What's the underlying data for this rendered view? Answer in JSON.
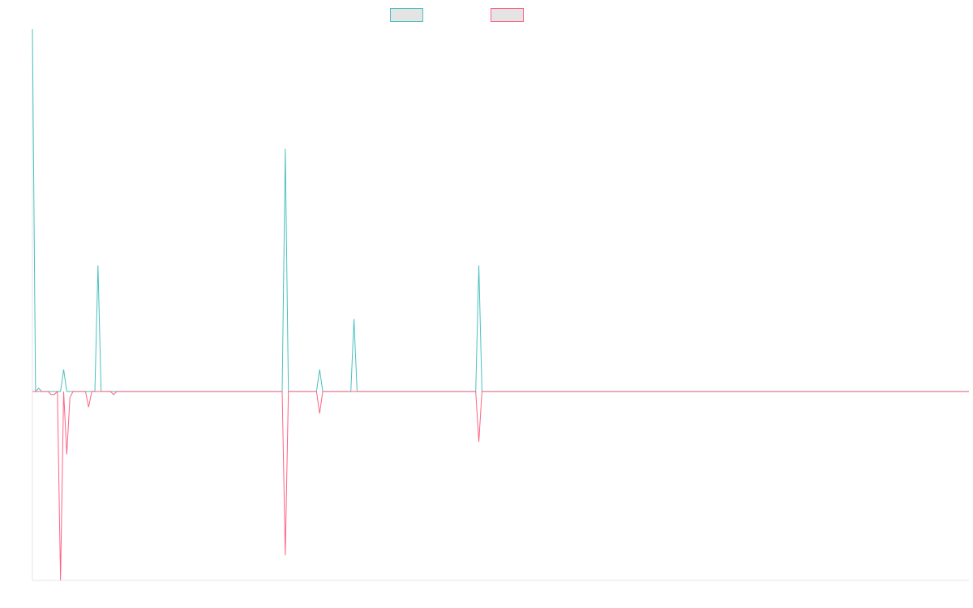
{
  "chart_data": {
    "type": "line",
    "title": "",
    "xlabel": "",
    "ylabel": "",
    "grid": false,
    "legend_position": "top-center",
    "xlim": [
      0,
      300
    ],
    "ylim": [
      -60,
      115
    ],
    "series": [
      {
        "color": "#4bc0c0",
        "fill": "#e4e4e4",
        "points": [
          [
            0,
            115
          ],
          [
            1,
            0
          ],
          [
            2,
            1
          ],
          [
            3,
            0
          ],
          [
            4,
            0
          ],
          [
            5,
            0
          ],
          [
            6,
            0
          ],
          [
            7,
            0
          ],
          [
            8,
            0
          ],
          [
            9,
            0
          ],
          [
            10,
            7
          ],
          [
            11,
            0
          ],
          [
            12,
            0
          ],
          [
            13,
            0
          ],
          [
            14,
            0
          ],
          [
            15,
            0
          ],
          [
            16,
            0
          ],
          [
            17,
            0
          ],
          [
            18,
            0
          ],
          [
            19,
            0
          ],
          [
            20,
            0
          ],
          [
            21,
            40
          ],
          [
            22,
            0
          ],
          [
            23,
            0
          ],
          [
            24,
            0
          ],
          [
            25,
            0
          ],
          [
            26,
            0
          ],
          [
            27,
            0
          ],
          [
            80,
            0
          ],
          [
            81,
            77
          ],
          [
            82,
            0
          ],
          [
            83,
            0
          ],
          [
            91,
            0
          ],
          [
            92,
            7
          ],
          [
            93,
            0
          ],
          [
            94,
            0
          ],
          [
            102,
            0
          ],
          [
            103,
            23
          ],
          [
            104,
            0
          ],
          [
            105,
            0
          ],
          [
            142,
            0
          ],
          [
            143,
            40
          ],
          [
            144,
            0
          ],
          [
            145,
            0
          ],
          [
            300,
            0
          ]
        ]
      },
      {
        "color": "#ff6384",
        "fill": "#e4e4e4",
        "points": [
          [
            0,
            0
          ],
          [
            1,
            0
          ],
          [
            2,
            0
          ],
          [
            3,
            0
          ],
          [
            4,
            0
          ],
          [
            5,
            0
          ],
          [
            6,
            -1
          ],
          [
            7,
            -1
          ],
          [
            8,
            0
          ],
          [
            9,
            -60
          ],
          [
            10,
            0
          ],
          [
            11,
            -20
          ],
          [
            12,
            -2
          ],
          [
            13,
            0
          ],
          [
            14,
            0
          ],
          [
            15,
            0
          ],
          [
            16,
            0
          ],
          [
            17,
            0
          ],
          [
            18,
            -5
          ],
          [
            19,
            0
          ],
          [
            25,
            0
          ],
          [
            26,
            -1
          ],
          [
            27,
            0
          ],
          [
            80,
            0
          ],
          [
            81,
            -52
          ],
          [
            82,
            0
          ],
          [
            83,
            0
          ],
          [
            91,
            0
          ],
          [
            92,
            -7
          ],
          [
            93,
            0
          ],
          [
            94,
            0
          ],
          [
            142,
            0
          ],
          [
            143,
            -16
          ],
          [
            144,
            0
          ],
          [
            145,
            0
          ],
          [
            300,
            0
          ]
        ]
      }
    ]
  }
}
